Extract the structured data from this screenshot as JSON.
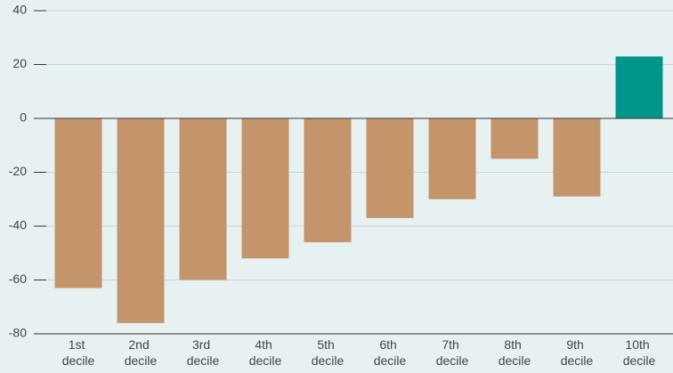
{
  "chart_data": {
    "type": "bar",
    "categories": [
      "1st decile",
      "2nd decile",
      "3rd decile",
      "4th decile",
      "5th decile",
      "6th decile",
      "7th decile",
      "8th decile",
      "9th decile",
      "10th decile"
    ],
    "values": [
      -63,
      -76,
      -60,
      -52,
      -46,
      -37,
      -30,
      -15,
      -29,
      23
    ],
    "colors": [
      "#c4956a",
      "#c4956a",
      "#c4956a",
      "#c4956a",
      "#c4956a",
      "#c4956a",
      "#c4956a",
      "#c4956a",
      "#c4956a",
      "#00968a"
    ],
    "ylim": [
      -80,
      40
    ],
    "yticks": [
      -80,
      -60,
      -40,
      -20,
      0,
      20,
      40
    ],
    "grid": true
  }
}
